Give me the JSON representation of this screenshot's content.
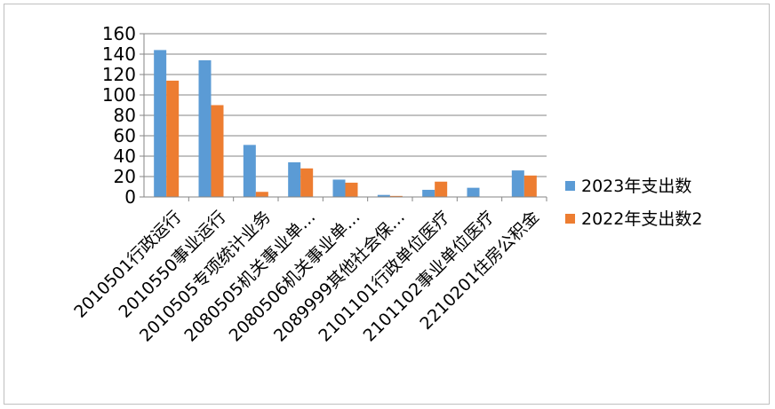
{
  "chart_data": {
    "type": "bar",
    "title": "",
    "xlabel": "",
    "ylabel": "",
    "ylim": [
      0,
      160
    ],
    "yticks": [
      0,
      20,
      40,
      60,
      80,
      100,
      120,
      140,
      160
    ],
    "grid": true,
    "legend_position": "right",
    "categories": [
      "2010501行政运行",
      "2010550事业运行",
      "2010505专项统计业务",
      "2080505机关事业单…",
      "2080506机关事业单…",
      "2089999其他社会保…",
      "2101101行政单位医疗",
      "2101102事业单位医疗",
      "2210201住房公积金"
    ],
    "series": [
      {
        "name": "2023年支出数",
        "color": "#5b9bd5",
        "values": [
          144,
          134,
          51,
          34,
          17,
          2,
          7,
          9,
          26
        ]
      },
      {
        "name": "2022年支出数2",
        "color": "#ed7d31",
        "values": [
          114,
          90,
          5,
          28,
          14,
          1,
          15,
          0,
          21
        ]
      }
    ]
  }
}
